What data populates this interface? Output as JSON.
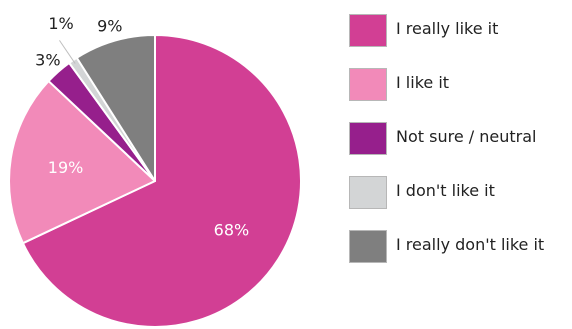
{
  "chart_data": {
    "type": "pie",
    "title": "",
    "categories": [
      "I really like it",
      "I like it",
      "Not sure / neutral",
      "I don't like it",
      "I really don't like it"
    ],
    "values": [
      68,
      19,
      3,
      1,
      9
    ],
    "labels": [
      "68%",
      "19%",
      "3%",
      "1%",
      "9%"
    ],
    "colors": [
      "#d23f94",
      "#f28ab9",
      "#961f8c",
      "#d3d5d6",
      "#7f7f7f"
    ],
    "start_angle": "12 o'clock",
    "direction": "clockwise",
    "legend_position": "right"
  }
}
